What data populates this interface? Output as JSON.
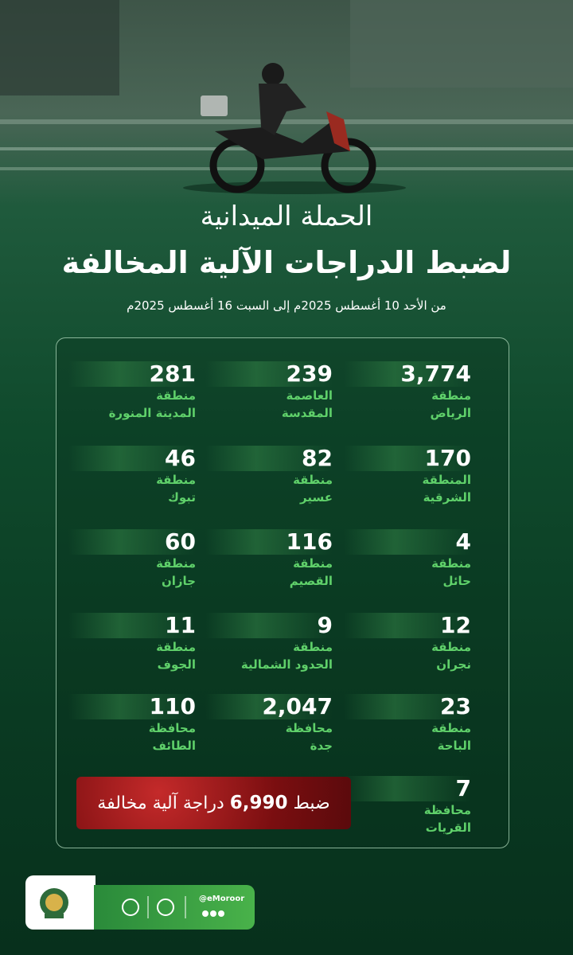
{
  "header": {
    "title_line1": "الحملة الميدانية",
    "title_line2": "لضبط الدراجات الآلية المخالفة",
    "date_range": "من الأحد 10 أغسطس 2025م إلى السبت 16 أغسطس 2025م"
  },
  "regions": [
    {
      "count": "3,774",
      "lines": [
        "منطقة",
        "الرياض"
      ]
    },
    {
      "count": "239",
      "lines": [
        "العاصمة",
        "المقدسة"
      ]
    },
    {
      "count": "281",
      "lines": [
        "منطقة",
        "المدينة المنورة"
      ]
    },
    {
      "count": "170",
      "lines": [
        "المنطقة",
        "الشرقية"
      ]
    },
    {
      "count": "82",
      "lines": [
        "منطقة",
        "عسير"
      ]
    },
    {
      "count": "46",
      "lines": [
        "منطقة",
        "تبوك"
      ]
    },
    {
      "count": "4",
      "lines": [
        "منطقة",
        "حائل"
      ]
    },
    {
      "count": "116",
      "lines": [
        "منطقة",
        "القصيم"
      ]
    },
    {
      "count": "60",
      "lines": [
        "منطقة",
        "جازان"
      ]
    },
    {
      "count": "12",
      "lines": [
        "منطقة",
        "نجران"
      ]
    },
    {
      "count": "9",
      "lines": [
        "منطقة",
        "الحدود الشمالية"
      ]
    },
    {
      "count": "11",
      "lines": [
        "منطقة",
        "الجوف"
      ]
    },
    {
      "count": "23",
      "lines": [
        "منطقة",
        "الباحة"
      ]
    },
    {
      "count": "2,047",
      "lines": [
        "محافظة",
        "جدة"
      ]
    },
    {
      "count": "110",
      "lines": [
        "محافظة",
        "الطائف"
      ]
    },
    {
      "count": "7",
      "lines": [
        "محافظة",
        "القريات"
      ]
    }
  ],
  "total": {
    "prefix": "ضبط",
    "count": "6,990",
    "suffix": "دراجة آلية مخالفة"
  },
  "footer": {
    "handle": "@eMoroor"
  }
}
